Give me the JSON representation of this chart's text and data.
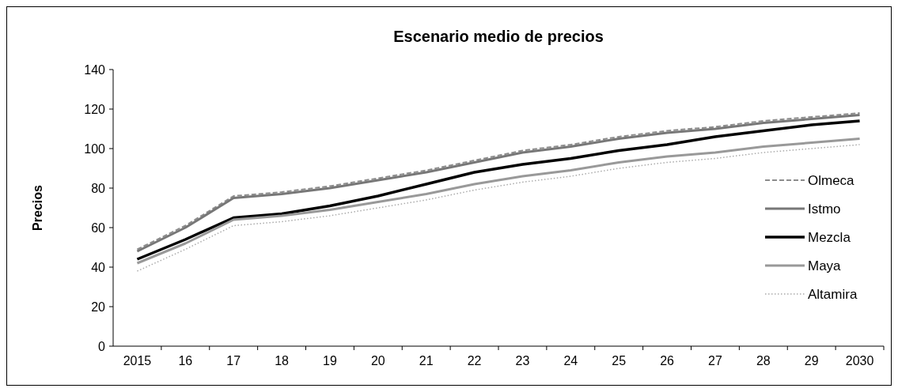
{
  "chart_data": {
    "type": "line",
    "title": "Escenario medio de precios",
    "ylabel": "Precios",
    "categories": [
      "2015",
      "16",
      "17",
      "18",
      "19",
      "20",
      "21",
      "22",
      "23",
      "24",
      "25",
      "26",
      "27",
      "28",
      "29",
      "2030"
    ],
    "ylim": [
      0,
      140
    ],
    "yticks": [
      0,
      20,
      40,
      60,
      80,
      100,
      120,
      140
    ],
    "grid": false,
    "legend": "right",
    "series": [
      {
        "name": "Olmeca",
        "color": "#8c8c8c",
        "line_style": "dashed",
        "values": [
          49,
          61,
          76,
          78,
          81,
          85,
          89,
          94,
          99,
          102,
          106,
          109,
          111,
          114,
          116,
          118
        ]
      },
      {
        "name": "Istmo",
        "color": "#777777",
        "line_style": "solid",
        "values": [
          48,
          60,
          75,
          77,
          80,
          84,
          88,
          93,
          98,
          101,
          105,
          108,
          110,
          113,
          115,
          117
        ]
      },
      {
        "name": "Mezcla",
        "color": "#000000",
        "line_style": "solid",
        "values": [
          44,
          54,
          65,
          67,
          71,
          76,
          82,
          88,
          92,
          95,
          99,
          102,
          106,
          109,
          112,
          114
        ]
      },
      {
        "name": "Maya",
        "color": "#999999",
        "line_style": "solid",
        "values": [
          42,
          52,
          64,
          66,
          69,
          73,
          77,
          82,
          86,
          89,
          93,
          96,
          98,
          101,
          103,
          105
        ]
      },
      {
        "name": "Altamira",
        "color": "#aaaaaa",
        "line_style": "dotted",
        "values": [
          38,
          49,
          61,
          63,
          66,
          70,
          74,
          79,
          83,
          86,
          90,
          93,
          95,
          98,
          100,
          102
        ]
      }
    ]
  }
}
